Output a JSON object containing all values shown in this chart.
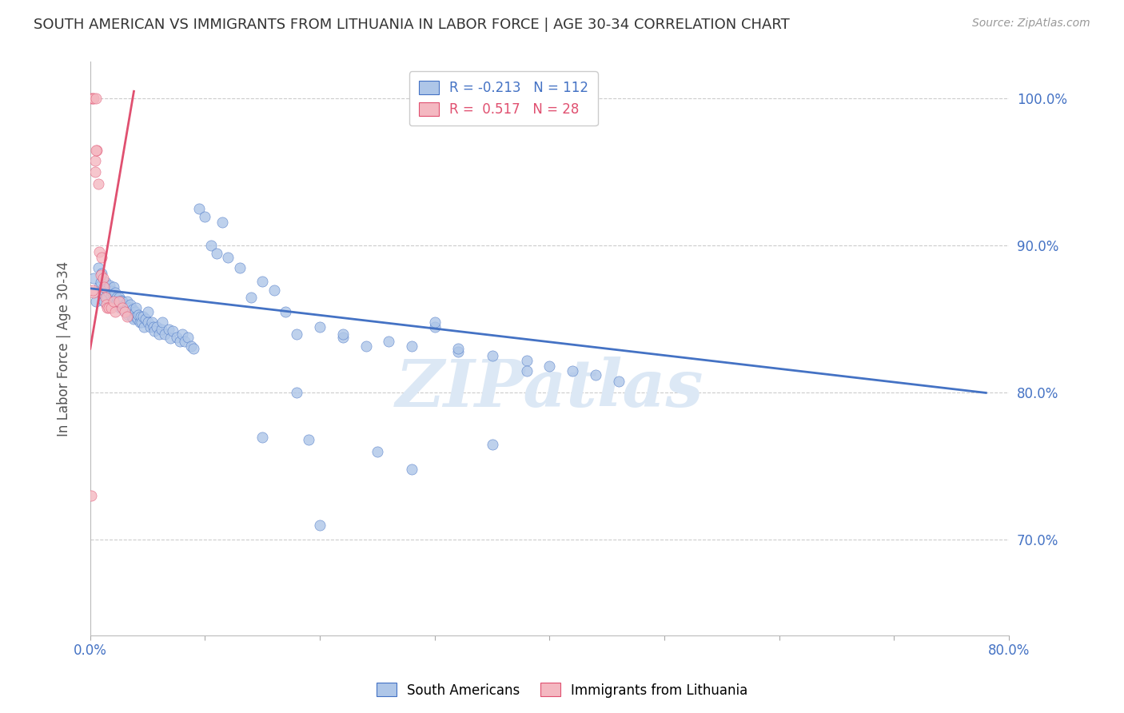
{
  "title": "SOUTH AMERICAN VS IMMIGRANTS FROM LITHUANIA IN LABOR FORCE | AGE 30-34 CORRELATION CHART",
  "source": "Source: ZipAtlas.com",
  "ylabel": "In Labor Force | Age 30-34",
  "xlim": [
    0.0,
    0.8
  ],
  "ylim": [
    0.635,
    1.025
  ],
  "ytick_positions": [
    0.7,
    0.8,
    0.9,
    1.0
  ],
  "ytick_labels": [
    "70.0%",
    "80.0%",
    "90.0%",
    "100.0%"
  ],
  "blue_color": "#aec6e8",
  "blue_line_color": "#4472c4",
  "pink_color": "#f4b8c1",
  "pink_line_color": "#e05070",
  "R_blue": -0.213,
  "N_blue": 112,
  "R_pink": 0.517,
  "N_pink": 28,
  "legend_label_blue": "South Americans",
  "legend_label_pink": "Immigrants from Lithuania",
  "watermark": "ZIPatlas",
  "blue_scatter_x": [
    0.003,
    0.005,
    0.007,
    0.008,
    0.009,
    0.01,
    0.01,
    0.012,
    0.012,
    0.013,
    0.014,
    0.015,
    0.015,
    0.016,
    0.017,
    0.018,
    0.018,
    0.019,
    0.02,
    0.02,
    0.021,
    0.022,
    0.022,
    0.023,
    0.024,
    0.025,
    0.025,
    0.026,
    0.027,
    0.028,
    0.028,
    0.029,
    0.03,
    0.03,
    0.031,
    0.032,
    0.032,
    0.033,
    0.034,
    0.035,
    0.035,
    0.036,
    0.037,
    0.038,
    0.039,
    0.04,
    0.04,
    0.041,
    0.042,
    0.043,
    0.044,
    0.045,
    0.046,
    0.047,
    0.048,
    0.05,
    0.05,
    0.052,
    0.054,
    0.055,
    0.056,
    0.058,
    0.06,
    0.062,
    0.063,
    0.065,
    0.068,
    0.07,
    0.072,
    0.075,
    0.078,
    0.08,
    0.082,
    0.085,
    0.088,
    0.09,
    0.095,
    0.1,
    0.105,
    0.11,
    0.115,
    0.12,
    0.13,
    0.14,
    0.15,
    0.16,
    0.17,
    0.18,
    0.19,
    0.2,
    0.22,
    0.24,
    0.26,
    0.28,
    0.3,
    0.32,
    0.35,
    0.38,
    0.4,
    0.42,
    0.44,
    0.46,
    0.3,
    0.35,
    0.28,
    0.32,
    0.38,
    0.25,
    0.2,
    0.15,
    0.18,
    0.22
  ],
  "blue_scatter_y": [
    0.878,
    0.862,
    0.885,
    0.872,
    0.875,
    0.881,
    0.868,
    0.87,
    0.862,
    0.875,
    0.871,
    0.865,
    0.87,
    0.868,
    0.873,
    0.866,
    0.869,
    0.863,
    0.867,
    0.872,
    0.863,
    0.868,
    0.86,
    0.865,
    0.862,
    0.86,
    0.865,
    0.858,
    0.863,
    0.858,
    0.862,
    0.857,
    0.856,
    0.86,
    0.855,
    0.858,
    0.862,
    0.853,
    0.858,
    0.855,
    0.86,
    0.852,
    0.857,
    0.85,
    0.855,
    0.852,
    0.858,
    0.85,
    0.853,
    0.848,
    0.852,
    0.848,
    0.852,
    0.845,
    0.85,
    0.848,
    0.855,
    0.845,
    0.848,
    0.845,
    0.842,
    0.845,
    0.84,
    0.843,
    0.848,
    0.84,
    0.843,
    0.837,
    0.842,
    0.838,
    0.835,
    0.84,
    0.835,
    0.838,
    0.832,
    0.83,
    0.925,
    0.92,
    0.9,
    0.895,
    0.916,
    0.892,
    0.885,
    0.865,
    0.876,
    0.87,
    0.855,
    0.84,
    0.768,
    0.845,
    0.838,
    0.832,
    0.835,
    0.832,
    0.845,
    0.828,
    0.825,
    0.822,
    0.818,
    0.815,
    0.812,
    0.808,
    0.848,
    0.765,
    0.748,
    0.83,
    0.815,
    0.76,
    0.71,
    0.77,
    0.8,
    0.84
  ],
  "pink_scatter_x": [
    0.001,
    0.002,
    0.003,
    0.003,
    0.004,
    0.005,
    0.006,
    0.007,
    0.008,
    0.009,
    0.01,
    0.011,
    0.012,
    0.013,
    0.014,
    0.015,
    0.016,
    0.018,
    0.02,
    0.022,
    0.025,
    0.028,
    0.03,
    0.032,
    0.001,
    0.002,
    0.004,
    0.005
  ],
  "pink_scatter_y": [
    1.0,
    1.0,
    1.0,
    0.868,
    0.958,
    1.0,
    0.965,
    0.942,
    0.896,
    0.88,
    0.892,
    0.878,
    0.872,
    0.865,
    0.86,
    0.858,
    0.858,
    0.858,
    0.862,
    0.855,
    0.862,
    0.858,
    0.855,
    0.852,
    0.73,
    0.87,
    0.95,
    0.965
  ],
  "blue_trend_x": [
    0.0,
    0.78
  ],
  "blue_trend_y": [
    0.871,
    0.8
  ],
  "pink_trend_x": [
    0.0,
    0.038
  ],
  "pink_trend_y": [
    0.83,
    1.005
  ],
  "grid_color": "#cccccc",
  "right_axis_color": "#4472c4",
  "title_color": "#333333",
  "title_fontsize": 13,
  "source_fontsize": 10,
  "watermark_color": "#dce8f5",
  "watermark_fontsize": 60
}
